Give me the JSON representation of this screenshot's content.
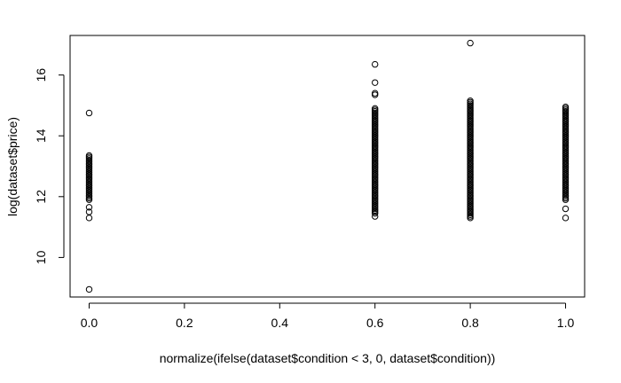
{
  "chart_data": {
    "type": "scatter",
    "title": "",
    "xlabel": "normalize(ifelse(dataset$condition < 3, 0, dataset$condition))",
    "ylabel": "log(dataset$price)",
    "xlim": [
      -0.04,
      1.04
    ],
    "ylim": [
      8.7,
      17.3
    ],
    "x_ticks": [
      0.0,
      0.2,
      0.4,
      0.6,
      0.8,
      1.0
    ],
    "x_tick_labels": [
      "0.0",
      "0.2",
      "0.4",
      "0.6",
      "0.8",
      "1.0"
    ],
    "y_ticks": [
      10,
      12,
      14,
      16
    ],
    "y_tick_labels": [
      "10",
      "12",
      "14",
      "16"
    ],
    "marker": "open-circle",
    "grid": false,
    "groups": [
      {
        "x": 0.0,
        "y_isolated": [
          8.95,
          11.3,
          11.5,
          11.65,
          14.75
        ],
        "y_dense_range": [
          11.9,
          13.35
        ]
      },
      {
        "x": 0.6,
        "y_isolated": [
          11.35,
          15.35,
          15.4,
          15.75,
          16.35
        ],
        "y_dense_range": [
          11.45,
          14.9
        ]
      },
      {
        "x": 0.8,
        "y_isolated": [
          11.3,
          17.05
        ],
        "y_dense_range": [
          11.35,
          15.15
        ]
      },
      {
        "x": 1.0,
        "y_isolated": [
          11.3,
          11.6
        ],
        "y_dense_range": [
          11.9,
          14.95
        ]
      }
    ]
  }
}
